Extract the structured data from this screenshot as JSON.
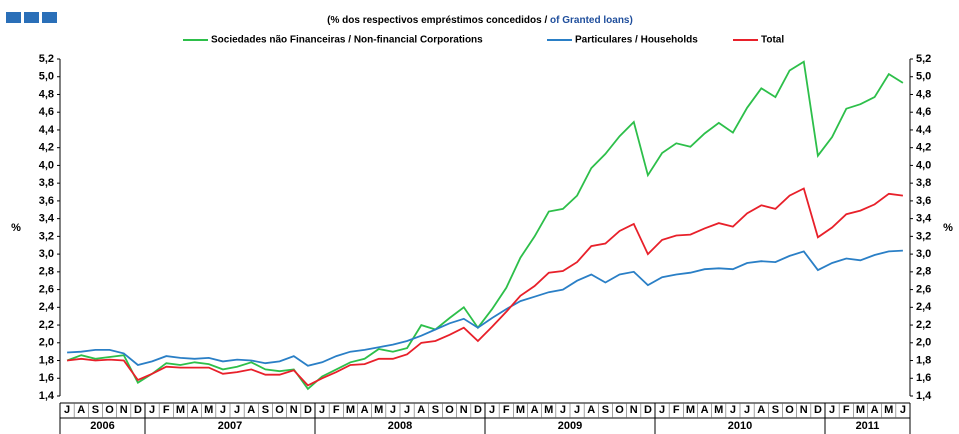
{
  "chart_data": {
    "type": "line",
    "subtitle_pt": "(% dos respectivos empréstimos concedidos /",
    "subtitle_en": "of Granted loans)",
    "ylabel": "%",
    "y2label": "%",
    "categories": [
      "J",
      "A",
      "S",
      "O",
      "N",
      "D",
      "J",
      "F",
      "M",
      "A",
      "M",
      "J",
      "J",
      "A",
      "S",
      "O",
      "N",
      "D",
      "J",
      "F",
      "M",
      "A",
      "M",
      "J",
      "J",
      "A",
      "S",
      "O",
      "N",
      "D",
      "J",
      "F",
      "M",
      "A",
      "M",
      "J",
      "J",
      "A",
      "S",
      "O",
      "N",
      "D",
      "J",
      "F",
      "M",
      "A",
      "M",
      "J",
      "J",
      "A",
      "S",
      "O",
      "N",
      "D",
      "J",
      "F",
      "M",
      "A",
      "M",
      "J"
    ],
    "years": [
      "2006",
      "2007",
      "2008",
      "2009",
      "2010",
      "2011"
    ],
    "series": [
      {
        "name": "Sociedades não Financeiras / Non-financial Corporations",
        "color": "#2dbf4a",
        "values": [
          1.8,
          1.86,
          1.82,
          1.84,
          1.86,
          1.55,
          1.65,
          1.77,
          1.75,
          1.78,
          1.76,
          1.7,
          1.73,
          1.78,
          1.7,
          1.68,
          1.7,
          1.48,
          1.62,
          1.7,
          1.78,
          1.82,
          1.93,
          1.9,
          1.94,
          2.2,
          2.15,
          2.28,
          2.4,
          2.17,
          2.38,
          2.62,
          2.96,
          3.2,
          3.48,
          3.51,
          3.66,
          3.97,
          4.13,
          4.33,
          4.49,
          3.89,
          4.14,
          4.25,
          4.21,
          4.36,
          4.48,
          4.37,
          4.65,
          4.87,
          4.77,
          5.07,
          5.17,
          4.11,
          4.32,
          4.64,
          4.69,
          4.77,
          5.03,
          4.93
        ]
      },
      {
        "name": "Particulares / Households",
        "color": "#2a7fc6",
        "values": [
          1.89,
          1.9,
          1.92,
          1.92,
          1.88,
          1.75,
          1.79,
          1.85,
          1.83,
          1.82,
          1.83,
          1.79,
          1.81,
          1.8,
          1.77,
          1.79,
          1.85,
          1.74,
          1.78,
          1.85,
          1.9,
          1.92,
          1.95,
          1.98,
          2.02,
          2.08,
          2.15,
          2.22,
          2.27,
          2.17,
          2.28,
          2.38,
          2.47,
          2.52,
          2.57,
          2.6,
          2.7,
          2.77,
          2.68,
          2.77,
          2.8,
          2.65,
          2.74,
          2.77,
          2.79,
          2.83,
          2.84,
          2.83,
          2.9,
          2.92,
          2.91,
          2.98,
          3.03,
          2.82,
          2.9,
          2.95,
          2.93,
          2.99,
          3.03,
          3.04
        ]
      },
      {
        "name": "Total",
        "color": "#e8202a",
        "values": [
          1.8,
          1.82,
          1.8,
          1.81,
          1.8,
          1.58,
          1.65,
          1.73,
          1.72,
          1.72,
          1.72,
          1.65,
          1.67,
          1.7,
          1.64,
          1.64,
          1.69,
          1.52,
          1.6,
          1.67,
          1.75,
          1.76,
          1.82,
          1.82,
          1.87,
          2.0,
          2.02,
          2.09,
          2.17,
          2.02,
          2.18,
          2.35,
          2.53,
          2.64,
          2.79,
          2.81,
          2.91,
          3.09,
          3.12,
          3.26,
          3.34,
          3.0,
          3.16,
          3.21,
          3.22,
          3.29,
          3.35,
          3.31,
          3.46,
          3.55,
          3.51,
          3.66,
          3.74,
          3.19,
          3.3,
          3.45,
          3.49,
          3.56,
          3.68,
          3.66
        ]
      }
    ],
    "ylim": [
      1.4,
      5.2
    ],
    "yticks": [
      {
        "value": 1.4,
        "label": "1,4"
      },
      {
        "value": 1.6,
        "label": "1,6"
      },
      {
        "value": 1.8,
        "label": "1,8"
      },
      {
        "value": 2.0,
        "label": "2,0"
      },
      {
        "value": 2.2,
        "label": "2,2"
      },
      {
        "value": 2.4,
        "label": "2,4"
      },
      {
        "value": 2.6,
        "label": "2,6"
      },
      {
        "value": 2.8,
        "label": "2,8"
      },
      {
        "value": 3.0,
        "label": "3,0"
      },
      {
        "value": 3.2,
        "label": "3,2"
      },
      {
        "value": 3.4,
        "label": "3,4"
      },
      {
        "value": 3.6,
        "label": "3,6"
      },
      {
        "value": 3.8,
        "label": "3,8"
      },
      {
        "value": 4.0,
        "label": "4,0"
      },
      {
        "value": 4.2,
        "label": "4,2"
      },
      {
        "value": 4.4,
        "label": "4,4"
      },
      {
        "value": 4.6,
        "label": "4,6"
      },
      {
        "value": 4.8,
        "label": "4,8"
      },
      {
        "value": 5.0,
        "label": "5,0"
      },
      {
        "value": 5.2,
        "label": "5,2"
      }
    ],
    "y2lim": [
      1.4,
      5.2
    ],
    "y2ticks": [
      {
        "value": 1.4,
        "label": "1,4"
      },
      {
        "value": 1.6,
        "label": "1,6"
      },
      {
        "value": 1.8,
        "label": "1,8"
      },
      {
        "value": 2.0,
        "label": "2,0"
      },
      {
        "value": 2.2,
        "label": "2,2"
      },
      {
        "value": 2.4,
        "label": "2,4"
      },
      {
        "value": 2.6,
        "label": "2,6"
      },
      {
        "value": 2.8,
        "label": "2,8"
      },
      {
        "value": 3.0,
        "label": "3,0"
      },
      {
        "value": 3.2,
        "label": "3,2"
      },
      {
        "value": 3.4,
        "label": "3,4"
      },
      {
        "value": 3.6,
        "label": "3,6"
      },
      {
        "value": 3.8,
        "label": "3,8"
      },
      {
        "value": 4.0,
        "label": "4,0"
      },
      {
        "value": 4.2,
        "label": "4,2"
      },
      {
        "value": 4.4,
        "label": "4,4"
      },
      {
        "value": 4.6,
        "label": "4,6"
      },
      {
        "value": 4.8,
        "label": "4,8"
      },
      {
        "value": 5.0,
        "label": "5,0"
      },
      {
        "value": 5.2,
        "label": "5,2"
      }
    ],
    "grid": false
  }
}
